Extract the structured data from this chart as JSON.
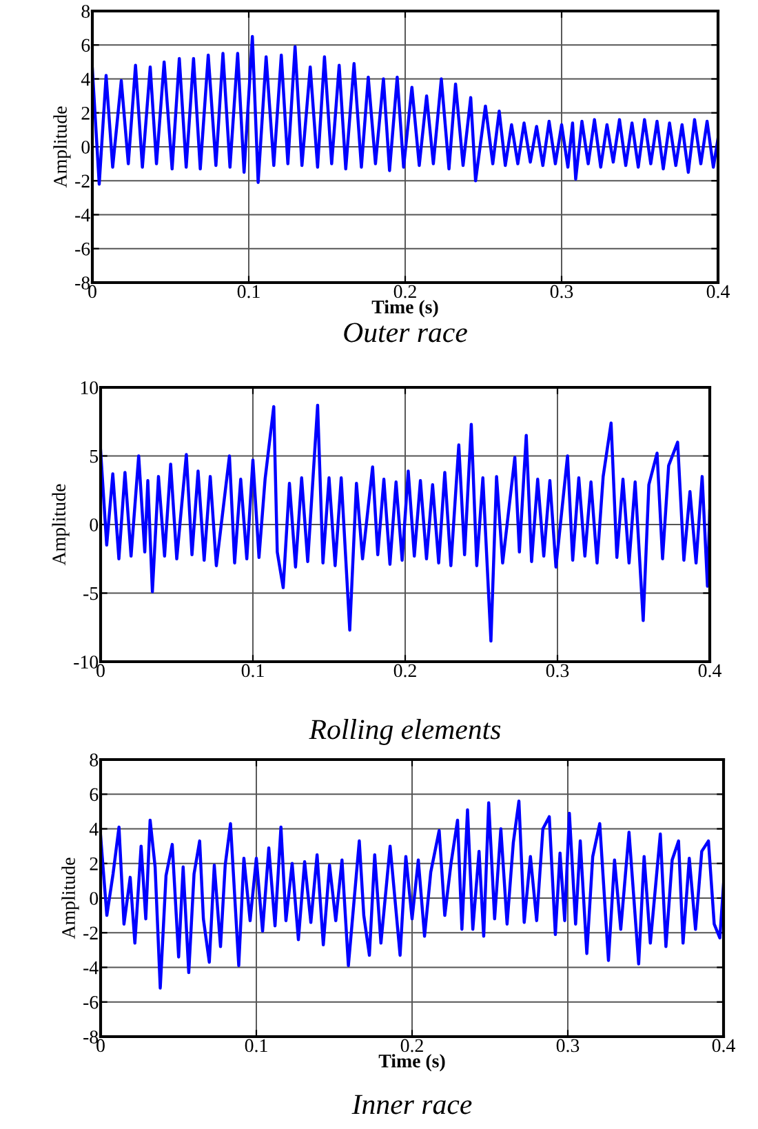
{
  "chart_data": [
    {
      "type": "line",
      "title": "Outer race",
      "xlabel": "Time (s)",
      "ylabel": "Amplitude",
      "xlim": [
        0,
        0.4
      ],
      "ylim": [
        -8,
        8
      ],
      "xticks": [
        0,
        0.1,
        0.2,
        0.3,
        0.4
      ],
      "yticks": [
        -8,
        -6,
        -4,
        -2,
        0,
        2,
        4,
        6,
        8
      ],
      "grid": true,
      "series": [
        {
          "color": "#0000ff",
          "x": [
            0,
            0.0044,
            0.0088,
            0.013,
            0.0185,
            0.023,
            0.0276,
            0.032,
            0.037,
            0.041,
            0.0459,
            0.051,
            0.0556,
            0.06,
            0.0647,
            0.069,
            0.0741,
            0.079,
            0.0835,
            0.088,
            0.0929,
            0.097,
            0.1023,
            0.106,
            0.1111,
            0.116,
            0.1208,
            0.125,
            0.1296,
            0.134,
            0.1393,
            0.144,
            0.1484,
            0.153,
            0.1578,
            0.162,
            0.1673,
            0.172,
            0.1764,
            0.181,
            0.1861,
            0.19,
            0.1949,
            0.199,
            0.2043,
            0.209,
            0.2137,
            0.218,
            0.2231,
            0.228,
            0.2322,
            0.237,
            0.2419,
            0.245,
            0.2513,
            0.256,
            0.2601,
            0.264,
            0.268,
            0.272,
            0.276,
            0.28,
            0.284,
            0.288,
            0.292,
            0.296,
            0.3,
            0.304,
            0.307,
            0.309,
            0.313,
            0.317,
            0.321,
            0.325,
            0.329,
            0.333,
            0.337,
            0.341,
            0.345,
            0.349,
            0.353,
            0.357,
            0.361,
            0.365,
            0.369,
            0.373,
            0.377,
            0.381,
            0.385,
            0.389,
            0.393,
            0.397,
            0.4
          ],
          "values": [
            4.6,
            -2.2,
            4.2,
            -1.2,
            3.9,
            -1.0,
            4.8,
            -1.2,
            4.7,
            -1.0,
            5.0,
            -1.3,
            5.2,
            -1.2,
            5.2,
            -1.3,
            5.4,
            -1.1,
            5.5,
            -1.2,
            5.5,
            -1.5,
            6.5,
            -2.1,
            5.3,
            -1.1,
            5.4,
            -1.0,
            5.9,
            -1.1,
            4.7,
            -1.2,
            5.3,
            -1.0,
            4.8,
            -1.3,
            4.9,
            -1.2,
            4.1,
            -1.0,
            4.0,
            -1.4,
            4.1,
            -1.2,
            3.5,
            -1.1,
            3.0,
            -1.0,
            4.0,
            -1.3,
            3.7,
            -1.1,
            2.9,
            -2.0,
            2.4,
            -1.0,
            2.1,
            -1.1,
            1.3,
            -1.0,
            1.4,
            -0.9,
            1.2,
            -1.1,
            1.5,
            -1.0,
            1.3,
            -1.2,
            1.4,
            -1.9,
            1.5,
            -1.0,
            1.6,
            -1.2,
            1.3,
            -0.9,
            1.6,
            -1.1,
            1.4,
            -1.2,
            1.6,
            -1.0,
            1.5,
            -1.3,
            1.4,
            -1.1,
            1.3,
            -1.5,
            1.6,
            -1.0,
            1.5,
            -1.2,
            0.5
          ]
        }
      ]
    },
    {
      "type": "line",
      "title": "Rolling elements",
      "ylabel": "Amplitude",
      "xlim": [
        0,
        0.4
      ],
      "ylim": [
        -10,
        10
      ],
      "xticks": [
        0,
        0.1,
        0.2,
        0.3,
        0.4
      ],
      "yticks": [
        -10,
        -5,
        0,
        5,
        10
      ],
      "grid": true,
      "series": [
        {
          "color": "#0000ff",
          "x": [
            0,
            0.004,
            0.008,
            0.012,
            0.016,
            0.02,
            0.025,
            0.029,
            0.031,
            0.034,
            0.038,
            0.042,
            0.046,
            0.05,
            0.0563,
            0.06,
            0.064,
            0.068,
            0.072,
            0.076,
            0.0846,
            0.088,
            0.092,
            0.096,
            0.1,
            0.104,
            0.108,
            0.1137,
            0.116,
            0.1199,
            0.124,
            0.128,
            0.132,
            0.136,
            0.1425,
            0.146,
            0.15,
            0.154,
            0.158,
            0.1636,
            0.168,
            0.172,
            0.1786,
            0.182,
            0.186,
            0.19,
            0.194,
            0.198,
            0.202,
            0.206,
            0.21,
            0.214,
            0.218,
            0.222,
            0.226,
            0.23,
            0.2352,
            0.239,
            0.2434,
            0.247,
            0.251,
            0.2563,
            0.26,
            0.264,
            0.272,
            0.275,
            0.2795,
            0.283,
            0.287,
            0.291,
            0.295,
            0.299,
            0.3066,
            0.31,
            0.314,
            0.318,
            0.322,
            0.326,
            0.33,
            0.3352,
            0.339,
            0.343,
            0.347,
            0.351,
            0.3563,
            0.36,
            0.3654,
            0.369,
            0.373,
            0.3789,
            0.383,
            0.387,
            0.391,
            0.395,
            0.3985,
            0.4
          ],
          "values": [
            5.4,
            -1.5,
            3.7,
            -2.5,
            3.8,
            -2.3,
            5.0,
            -2.0,
            3.2,
            -4.9,
            3.5,
            -2.3,
            4.4,
            -2.5,
            5.1,
            -2.2,
            3.9,
            -2.6,
            3.5,
            -3.0,
            5.0,
            -2.8,
            3.3,
            -2.5,
            4.7,
            -2.4,
            3.3,
            8.6,
            -2.0,
            -4.6,
            3.0,
            -3.1,
            3.4,
            -2.7,
            8.7,
            -2.8,
            3.4,
            -3.0,
            3.4,
            -7.7,
            3.0,
            -2.5,
            4.2,
            -2.2,
            3.3,
            -2.9,
            3.1,
            -2.6,
            3.9,
            -2.3,
            3.2,
            -2.5,
            2.9,
            -2.8,
            3.8,
            -3.0,
            5.8,
            -2.2,
            7.3,
            -3.0,
            3.4,
            -8.5,
            3.5,
            -2.8,
            4.9,
            -2.0,
            6.5,
            -2.7,
            3.3,
            -2.3,
            3.2,
            -3.1,
            5.0,
            -2.6,
            3.4,
            -2.3,
            3.1,
            -2.8,
            3.5,
            7.4,
            -2.4,
            3.3,
            -2.8,
            3.1,
            -7.0,
            2.9,
            5.2,
            -2.5,
            4.3,
            6.0,
            -2.6,
            2.4,
            -2.8,
            3.5,
            -4.5,
            1.0
          ]
        }
      ]
    },
    {
      "type": "line",
      "title": "Inner race",
      "xlabel": "Time (s)",
      "ylabel": "Amplitude",
      "xlim": [
        0,
        0.4
      ],
      "ylim": [
        -8,
        8
      ],
      "xticks": [
        0,
        0.1,
        0.2,
        0.3,
        0.4
      ],
      "yticks": [
        -8,
        -6,
        -4,
        -2,
        0,
        2,
        4,
        6,
        8
      ],
      "grid": true,
      "series": [
        {
          "color": "#0000ff",
          "x": [
            0,
            0.004,
            0.008,
            0.0118,
            0.015,
            0.019,
            0.022,
            0.026,
            0.029,
            0.0318,
            0.035,
            0.0383,
            0.042,
            0.046,
            0.0501,
            0.053,
            0.0566,
            0.06,
            0.0636,
            0.066,
            0.0698,
            0.073,
            0.077,
            0.08,
            0.0834,
            0.0887,
            0.092,
            0.096,
            0.1,
            0.104,
            0.108,
            0.112,
            0.1158,
            0.119,
            0.123,
            0.127,
            0.131,
            0.135,
            0.139,
            0.143,
            0.147,
            0.151,
            0.155,
            0.1591,
            0.1661,
            0.169,
            0.1726,
            0.176,
            0.18,
            0.1859,
            0.1923,
            0.196,
            0.2,
            0.204,
            0.208,
            0.212,
            0.2174,
            0.221,
            0.225,
            0.2292,
            0.232,
            0.2356,
            0.239,
            0.243,
            0.246,
            0.2492,
            0.253,
            0.257,
            0.261,
            0.265,
            0.2686,
            0.272,
            0.276,
            0.28,
            0.284,
            0.2881,
            0.292,
            0.295,
            0.298,
            0.301,
            0.305,
            0.308,
            0.3122,
            0.316,
            0.3205,
            0.3261,
            0.33,
            0.334,
            0.3393,
            0.3455,
            0.349,
            0.353,
            0.3594,
            0.363,
            0.367,
            0.3711,
            0.374,
            0.378,
            0.382,
            0.386,
            0.3903,
            0.394,
            0.3976,
            0.4
          ],
          "values": [
            3.6,
            -1.0,
            1.4,
            4.1,
            -1.5,
            1.2,
            -2.6,
            3.0,
            -1.2,
            4.5,
            1.8,
            -5.2,
            1.3,
            3.1,
            -3.4,
            1.8,
            -4.3,
            1.4,
            3.3,
            -1.2,
            -3.7,
            1.9,
            -2.8,
            1.9,
            4.3,
            -3.9,
            2.3,
            -1.3,
            2.3,
            -1.9,
            2.9,
            -1.6,
            4.1,
            -1.3,
            2.0,
            -2.4,
            2.1,
            -1.4,
            2.5,
            -2.7,
            1.9,
            -1.3,
            2.2,
            -3.9,
            3.3,
            -1.0,
            -3.3,
            2.5,
            -2.6,
            3.0,
            -3.3,
            2.4,
            -1.2,
            2.2,
            -2.2,
            1.5,
            3.9,
            -1.0,
            2.0,
            4.5,
            -1.8,
            5.1,
            -1.8,
            2.7,
            -2.2,
            5.5,
            -1.2,
            4.0,
            -1.5,
            3.2,
            5.6,
            -1.4,
            2.4,
            -1.3,
            4.0,
            4.7,
            -2.1,
            2.6,
            -1.3,
            4.9,
            -1.5,
            3.3,
            -3.2,
            2.4,
            4.3,
            -3.6,
            2.2,
            -1.8,
            3.8,
            -3.8,
            2.4,
            -2.6,
            3.7,
            -2.8,
            2.2,
            3.3,
            -2.6,
            2.3,
            -1.8,
            2.7,
            3.3,
            -1.5,
            -2.3,
            0.8
          ]
        }
      ]
    }
  ]
}
